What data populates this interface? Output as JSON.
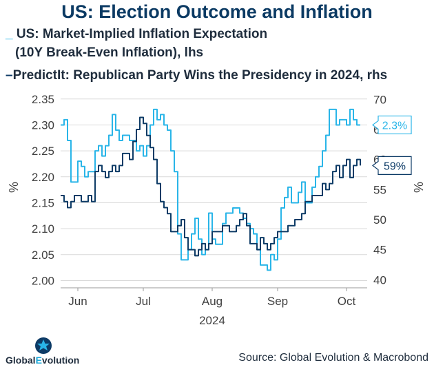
{
  "title": "US: Election Outcome and Inflation",
  "legend": {
    "series1_line1": "US: Market-Implied Inflation Expectation",
    "series1_line2": "(10Y Break-Even Inflation), lhs",
    "series2": "PredictIt: Republican Party Wins the Presidency in 2024, rhs"
  },
  "source": "Source: Global Evolution & Macrobond",
  "logo": {
    "part1": "Global",
    "part2": "E",
    "part3": "volution"
  },
  "colors": {
    "inflation": "#29b5e8",
    "predictit": "#0d3b66",
    "grid": "#d9d9d9",
    "text": "#404040"
  },
  "chart_data": {
    "type": "line",
    "title": "US: Election Outcome and Inflation",
    "xlabel": "2024",
    "x_ticks": [
      "Jun",
      "Jul",
      "Aug",
      "Sep",
      "Oct"
    ],
    "x_tick_pos": [
      5,
      24,
      44,
      63,
      83
    ],
    "x_range": [
      0,
      89
    ],
    "y_left": {
      "label": "%",
      "ticks": [
        "2.35",
        "2.30",
        "2.25",
        "2.20",
        "2.15",
        "2.10",
        "2.05",
        "2.00"
      ],
      "range": [
        1.99,
        2.355
      ]
    },
    "y_right": {
      "label": "%",
      "ticks": [
        "70",
        "65",
        "60",
        "55",
        "50",
        "45",
        "40"
      ],
      "range": [
        39,
        70.5
      ]
    },
    "end_labels": {
      "inflation": "2.3%",
      "predictit": "59%"
    },
    "series": [
      {
        "name": "US: Market-Implied Inflation Expectation (10Y Break-Even Inflation), lhs",
        "axis": "left",
        "x": [
          0,
          1,
          2,
          3,
          4,
          5,
          6,
          7,
          8,
          9,
          10,
          11,
          12,
          13,
          14,
          15,
          16,
          17,
          18,
          19,
          20,
          21,
          22,
          23,
          24,
          25,
          26,
          27,
          28,
          29,
          30,
          31,
          32,
          33,
          34,
          35,
          36,
          37,
          38,
          39,
          40,
          41,
          42,
          43,
          44,
          45,
          46,
          47,
          48,
          49,
          50,
          51,
          52,
          53,
          54,
          55,
          56,
          57,
          58,
          59,
          60,
          61,
          62,
          63,
          64,
          65,
          66,
          67,
          68,
          69,
          70,
          71,
          72,
          73,
          74,
          75,
          76,
          77,
          78,
          79,
          80,
          81,
          82,
          83,
          84,
          85,
          86,
          87
        ],
        "values": [
          2.3,
          2.31,
          2.27,
          2.19,
          2.19,
          2.23,
          2.22,
          2.2,
          2.21,
          2.21,
          2.25,
          2.26,
          2.24,
          2.26,
          2.28,
          2.32,
          2.29,
          2.27,
          2.28,
          2.28,
          2.27,
          2.27,
          2.25,
          2.26,
          2.24,
          2.26,
          2.3,
          2.33,
          2.31,
          2.32,
          2.3,
          2.29,
          2.25,
          2.21,
          2.09,
          2.04,
          2.04,
          2.06,
          2.09,
          2.12,
          2.08,
          2.05,
          2.06,
          2.13,
          2.08,
          2.07,
          2.07,
          2.11,
          2.13,
          2.13,
          2.14,
          2.14,
          2.13,
          2.12,
          2.11,
          2.1,
          2.09,
          2.06,
          2.03,
          2.03,
          2.02,
          2.05,
          2.04,
          2.08,
          2.14,
          2.16,
          2.18,
          2.15,
          2.15,
          2.17,
          2.19,
          2.15,
          2.15,
          2.18,
          2.2,
          2.22,
          2.25,
          2.28,
          2.33,
          2.33,
          2.3,
          2.31,
          2.31,
          2.3,
          2.33,
          2.31,
          2.3,
          2.3
        ]
      },
      {
        "name": "PredictIt: Republican Party Wins the Presidency in 2024, rhs",
        "axis": "right",
        "x": [
          0,
          1,
          2,
          3,
          4,
          5,
          6,
          7,
          8,
          9,
          10,
          11,
          12,
          13,
          14,
          15,
          16,
          17,
          18,
          19,
          20,
          21,
          22,
          23,
          24,
          25,
          26,
          27,
          28,
          29,
          30,
          31,
          32,
          33,
          34,
          35,
          36,
          37,
          38,
          39,
          40,
          41,
          42,
          43,
          44,
          45,
          46,
          47,
          48,
          49,
          50,
          51,
          52,
          53,
          54,
          55,
          56,
          57,
          58,
          59,
          60,
          61,
          62,
          63,
          64,
          65,
          66,
          67,
          68,
          69,
          70,
          71,
          72,
          73,
          74,
          75,
          76,
          77,
          78,
          79,
          80,
          81,
          82,
          83,
          84,
          85,
          86,
          87
        ],
        "values": [
          54,
          53,
          52,
          53,
          54,
          54,
          53,
          53,
          54,
          53,
          58,
          59,
          58,
          57,
          58,
          59,
          58,
          59,
          61,
          61,
          60,
          63,
          65,
          67,
          66,
          64,
          62,
          60,
          56,
          53,
          52,
          51,
          48,
          48,
          49,
          50,
          47,
          45,
          45,
          44,
          45,
          46,
          45,
          46,
          48,
          48,
          48,
          49,
          49,
          48,
          48,
          49,
          50,
          51,
          49,
          46,
          46,
          45,
          47,
          46,
          45,
          46,
          47,
          48,
          48,
          48,
          49,
          49,
          50,
          50,
          51,
          53,
          53,
          54,
          54,
          54,
          56,
          55,
          56,
          58,
          59,
          57,
          59,
          60,
          57,
          59,
          60,
          59
        ]
      }
    ]
  }
}
